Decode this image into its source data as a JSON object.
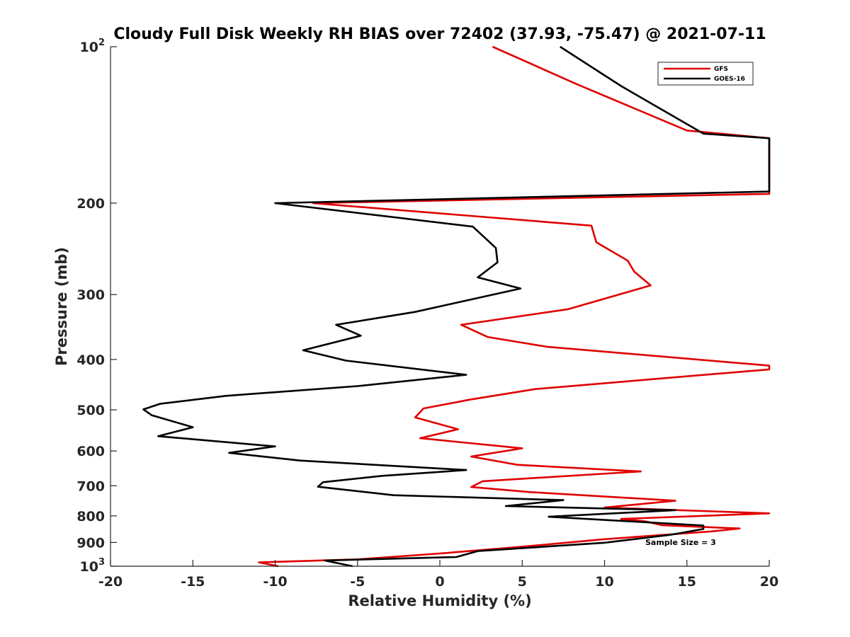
{
  "chart_data": {
    "type": "line",
    "title": "Cloudy Full Disk Weekly RH BIAS over 72402 (37.93, -75.47) @ 2021-07-11",
    "xlabel": "Relative Humidity (%)",
    "ylabel": "Pressure (mb)",
    "xlim": [
      -20,
      20
    ],
    "ylim": [
      100,
      1000
    ],
    "y_scale": "log",
    "y_reversed": true,
    "grid": false,
    "legend_position": "top-right",
    "annotation": "Sample Size = 3",
    "x_ticks": [
      -20,
      -15,
      -10,
      -5,
      0,
      5,
      10,
      15,
      20
    ],
    "x_tick_labels": [
      "-20",
      "-15",
      "-10",
      "-5",
      "0",
      "5",
      "10",
      "15",
      "20"
    ],
    "y_ticks": [
      {
        "value": 100,
        "base": "10",
        "exp": "2"
      },
      {
        "value": 200,
        "base": "200",
        "exp": ""
      },
      {
        "value": 300,
        "base": "300",
        "exp": ""
      },
      {
        "value": 400,
        "base": "400",
        "exp": ""
      },
      {
        "value": 500,
        "base": "500",
        "exp": ""
      },
      {
        "value": 600,
        "base": "600",
        "exp": ""
      },
      {
        "value": 700,
        "base": "700",
        "exp": ""
      },
      {
        "value": 800,
        "base": "800",
        "exp": ""
      },
      {
        "value": 900,
        "base": "900",
        "exp": ""
      },
      {
        "value": 1000,
        "base": "10",
        "exp": "3"
      }
    ],
    "series": [
      {
        "name": "GFS",
        "color": "#e00000",
        "points": [
          [
            3.2,
            100
          ],
          [
            8.3,
            118
          ],
          [
            15.0,
            145
          ],
          [
            20.0,
            150
          ],
          [
            20.0,
            192
          ],
          [
            -7.7,
            200
          ],
          [
            9.2,
            221
          ],
          [
            9.5,
            238
          ],
          [
            11.4,
            258
          ],
          [
            11.8,
            271
          ],
          [
            12.8,
            288
          ],
          [
            7.8,
            320
          ],
          [
            1.3,
            343
          ],
          [
            2.9,
            362
          ],
          [
            6.5,
            378
          ],
          [
            20.0,
            411
          ],
          [
            20.0,
            418
          ],
          [
            5.8,
            456
          ],
          [
            1.8,
            478
          ],
          [
            -1.0,
            497
          ],
          [
            -1.5,
            517
          ],
          [
            1.1,
            545
          ],
          [
            -1.2,
            567
          ],
          [
            5.0,
            593
          ],
          [
            1.9,
            615
          ],
          [
            4.7,
            638
          ],
          [
            12.2,
            657
          ],
          [
            2.6,
            686
          ],
          [
            1.9,
            704
          ],
          [
            5.5,
            720
          ],
          [
            14.3,
            748
          ],
          [
            10.0,
            771
          ],
          [
            20.0,
            791
          ],
          [
            11.0,
            811
          ],
          [
            12.5,
            820
          ],
          [
            13.5,
            834
          ],
          [
            18.2,
            846
          ],
          [
            16.5,
            857
          ],
          [
            10.0,
            887
          ],
          [
            5.0,
            917
          ],
          [
            0.0,
            945
          ],
          [
            -5.0,
            970
          ],
          [
            -11.0,
            983
          ],
          [
            -9.8,
            1000
          ]
        ]
      },
      {
        "name": "GOES-16",
        "color": "#000000",
        "points": [
          [
            7.3,
            100
          ],
          [
            11.0,
            119
          ],
          [
            16.0,
            147
          ],
          [
            20.0,
            150
          ],
          [
            20.0,
            190
          ],
          [
            -10.0,
            200
          ],
          [
            2.0,
            222
          ],
          [
            3.4,
            244
          ],
          [
            3.5,
            260
          ],
          [
            2.3,
            278
          ],
          [
            4.9,
            292
          ],
          [
            -1.5,
            324
          ],
          [
            -6.3,
            343
          ],
          [
            -4.8,
            360
          ],
          [
            -8.3,
            384
          ],
          [
            -5.7,
            402
          ],
          [
            1.6,
            428
          ],
          [
            -5.0,
            450
          ],
          [
            -13.0,
            470
          ],
          [
            -17.0,
            487
          ],
          [
            -18.0,
            499
          ],
          [
            -17.5,
            512
          ],
          [
            -15.0,
            540
          ],
          [
            -17.1,
            562
          ],
          [
            -10.0,
            588
          ],
          [
            -12.8,
            605
          ],
          [
            -8.5,
            626
          ],
          [
            1.6,
            653
          ],
          [
            -3.5,
            670
          ],
          [
            -7.1,
            689
          ],
          [
            -7.4,
            703
          ],
          [
            -2.8,
            730
          ],
          [
            7.5,
            746
          ],
          [
            4.0,
            766
          ],
          [
            14.3,
            780
          ],
          [
            6.6,
            803
          ],
          [
            16.0,
            835
          ],
          [
            16.0,
            848
          ],
          [
            14.0,
            870
          ],
          [
            10.0,
            901
          ],
          [
            2.3,
            935
          ],
          [
            1.0,
            960
          ],
          [
            -7.0,
            975
          ],
          [
            -5.3,
            1000
          ]
        ]
      }
    ]
  }
}
